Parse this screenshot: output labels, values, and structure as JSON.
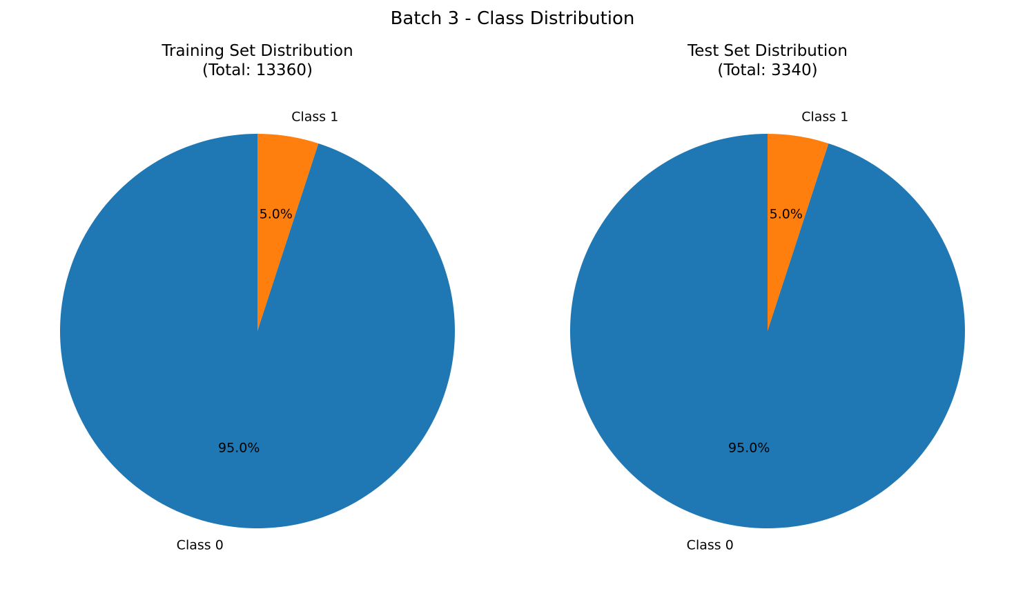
{
  "figure": {
    "title": "Batch 3 - Class Distribution"
  },
  "chart_data": [
    {
      "type": "pie",
      "title_line1": "Training Set Distribution",
      "title_line2": "(Total: 13360)",
      "labels": [
        "Class 0",
        "Class 1"
      ],
      "values": [
        95.0,
        5.0
      ],
      "autopct": [
        "95.0%",
        "5.0%"
      ],
      "colors": [
        "#1f77b4",
        "#ff7f0e"
      ],
      "start_angle_deg": 90,
      "direction": "clockwise-from-top, Class 1 first"
    },
    {
      "type": "pie",
      "title_line1": "Test Set Distribution",
      "title_line2": "(Total: 3340)",
      "labels": [
        "Class 0",
        "Class 1"
      ],
      "values": [
        95.0,
        5.0
      ],
      "autopct": [
        "95.0%",
        "5.0%"
      ],
      "colors": [
        "#1f77b4",
        "#ff7f0e"
      ],
      "start_angle_deg": 90,
      "direction": "clockwise-from-top, Class 1 first"
    }
  ]
}
